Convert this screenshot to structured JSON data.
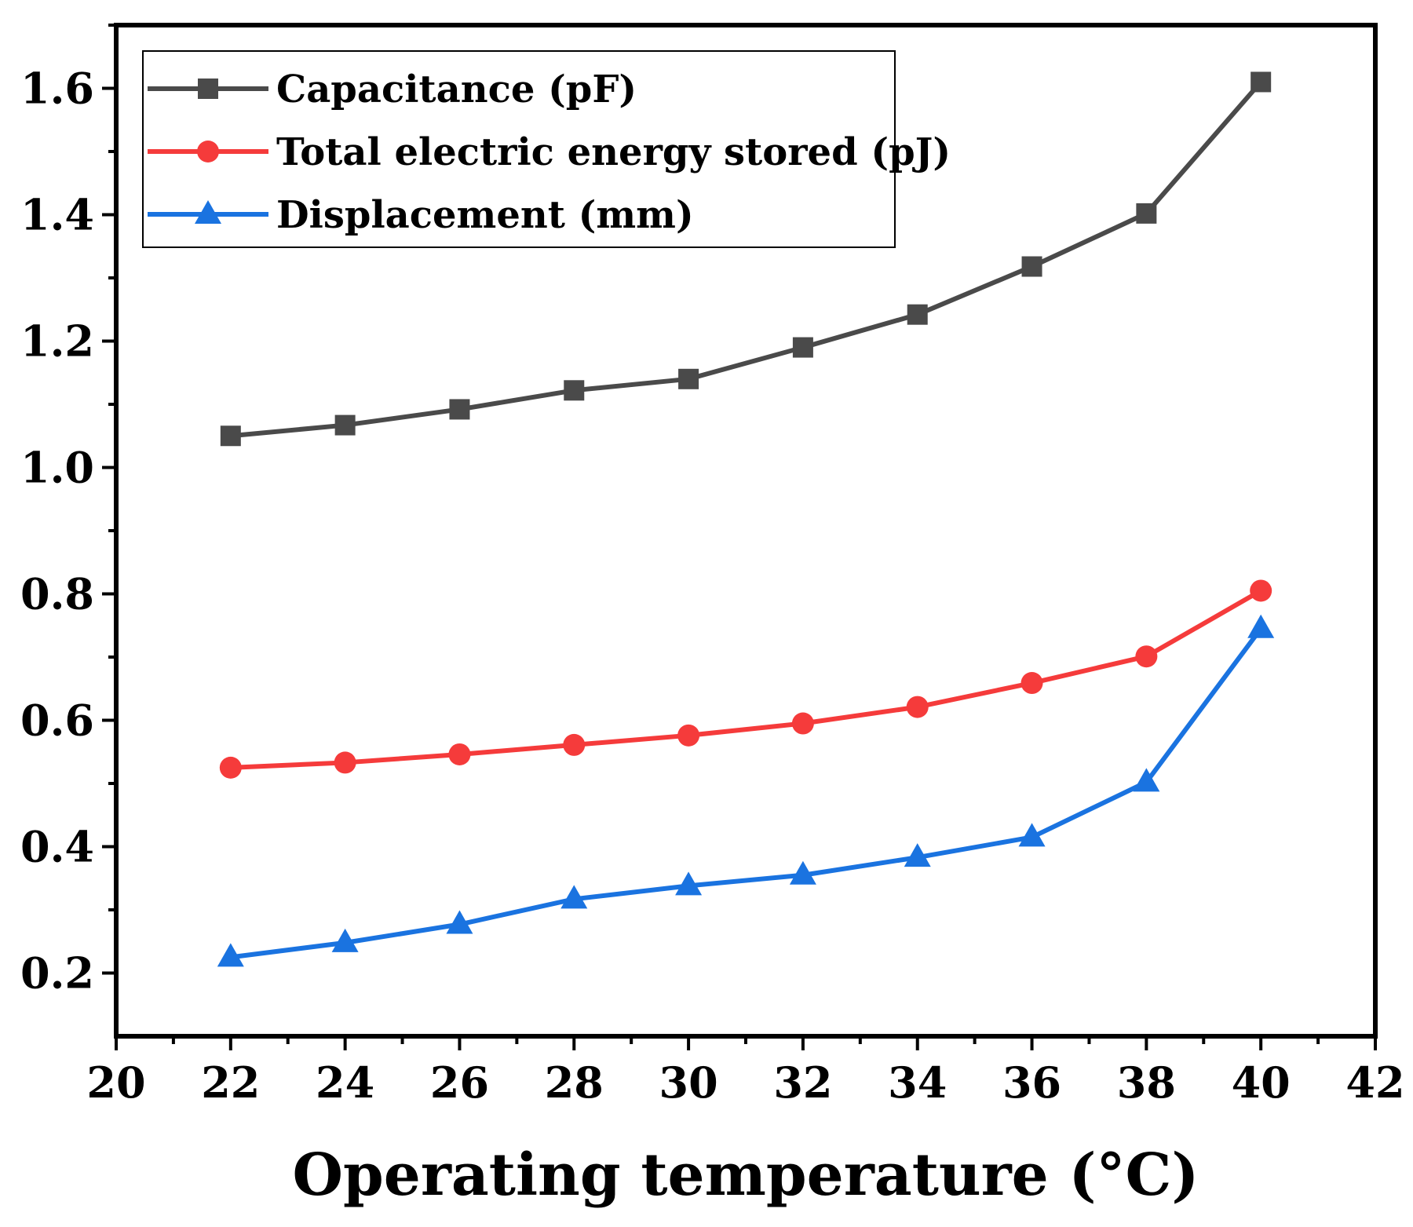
{
  "chart_data": {
    "type": "line",
    "title": "",
    "xlabel": "Operating temperature (°C)",
    "ylabel": "",
    "xlim": [
      20,
      42
    ],
    "ylim": [
      0.1,
      1.7
    ],
    "x_ticks": [
      20,
      22,
      24,
      26,
      28,
      30,
      32,
      34,
      36,
      38,
      40,
      42
    ],
    "x_tick_labels": [
      "20",
      "22",
      "24",
      "26",
      "28",
      "30",
      "32",
      "34",
      "36",
      "38",
      "40",
      "42"
    ],
    "y_ticks": [
      0.2,
      0.4,
      0.6,
      0.8,
      1.0,
      1.2,
      1.4,
      1.6
    ],
    "y_tick_labels": [
      "0.2",
      "0.4",
      "0.6",
      "0.8",
      "1.0",
      "1.2",
      "1.4",
      "1.6"
    ],
    "grid": false,
    "legend_position": "top-left",
    "x": [
      22,
      24,
      26,
      28,
      30,
      32,
      34,
      36,
      38,
      40
    ],
    "series": [
      {
        "name": "Capacitance (pF)",
        "color": "#4a4a4a",
        "marker": "square",
        "values": [
          1.05,
          1.067,
          1.092,
          1.122,
          1.14,
          1.19,
          1.242,
          1.318,
          1.402,
          1.61
        ]
      },
      {
        "name": "Total electric energy stored (pJ)",
        "color": "#f53b3b",
        "marker": "circle",
        "values": [
          0.525,
          0.533,
          0.546,
          0.561,
          0.576,
          0.595,
          0.621,
          0.659,
          0.701,
          0.805
        ]
      },
      {
        "name": "Displacement (mm)",
        "color": "#1a73e0",
        "marker": "triangle",
        "values": [
          0.225,
          0.248,
          0.277,
          0.317,
          0.338,
          0.355,
          0.383,
          0.415,
          0.502,
          0.745
        ]
      }
    ]
  }
}
